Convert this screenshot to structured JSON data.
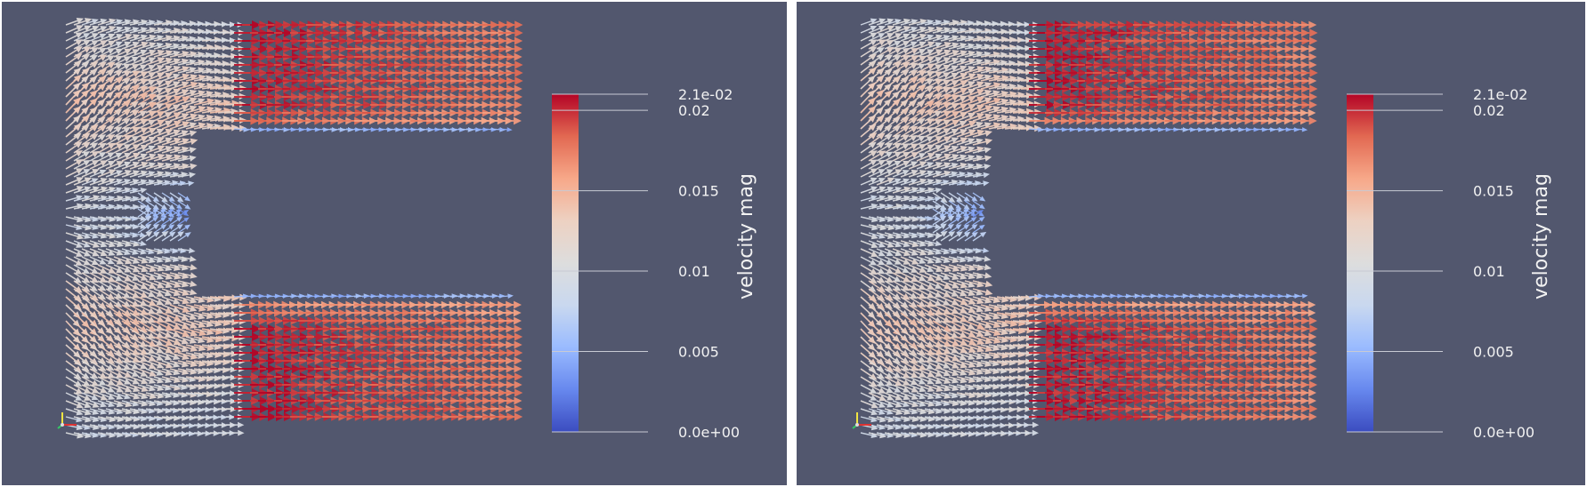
{
  "viewports": [
    {
      "id": "left",
      "colorbar": {
        "title": "velocity mag",
        "range": [
          0.0,
          0.021
        ],
        "ticks": [
          {
            "value": 0.021,
            "label": "2.1e-02"
          },
          {
            "value": 0.02,
            "label": "0.02"
          },
          {
            "value": 0.015,
            "label": "0.015"
          },
          {
            "value": 0.01,
            "label": "0.01"
          },
          {
            "value": 0.005,
            "label": "0.005"
          },
          {
            "value": 0.0,
            "label": "0.0e+00"
          }
        ],
        "colormap": [
          "#3b4cc0",
          "#6788ee",
          "#9abbff",
          "#c9d8ef",
          "#dddddd",
          "#edd1c2",
          "#f7a889",
          "#e26952",
          "#b40426"
        ]
      }
    },
    {
      "id": "right",
      "colorbar": {
        "title": "velocity mag",
        "range": [
          0.0,
          0.021
        ],
        "ticks": [
          {
            "value": 0.021,
            "label": "2.1e-02"
          },
          {
            "value": 0.02,
            "label": "0.02"
          },
          {
            "value": 0.015,
            "label": "0.015"
          },
          {
            "value": 0.01,
            "label": "0.01"
          },
          {
            "value": 0.005,
            "label": "0.005"
          },
          {
            "value": 0.0,
            "label": "0.0e+00"
          }
        ],
        "colormap": [
          "#3b4cc0",
          "#6788ee",
          "#9abbff",
          "#c9d8ef",
          "#dddddd",
          "#edd1c2",
          "#f7a889",
          "#e26952",
          "#b40426"
        ]
      }
    }
  ],
  "colors": {
    "background": "#52576e",
    "divider": "#ffffff",
    "label": "#f2f2f2"
  },
  "icons": [
    "orientation-axes-icon"
  ]
}
